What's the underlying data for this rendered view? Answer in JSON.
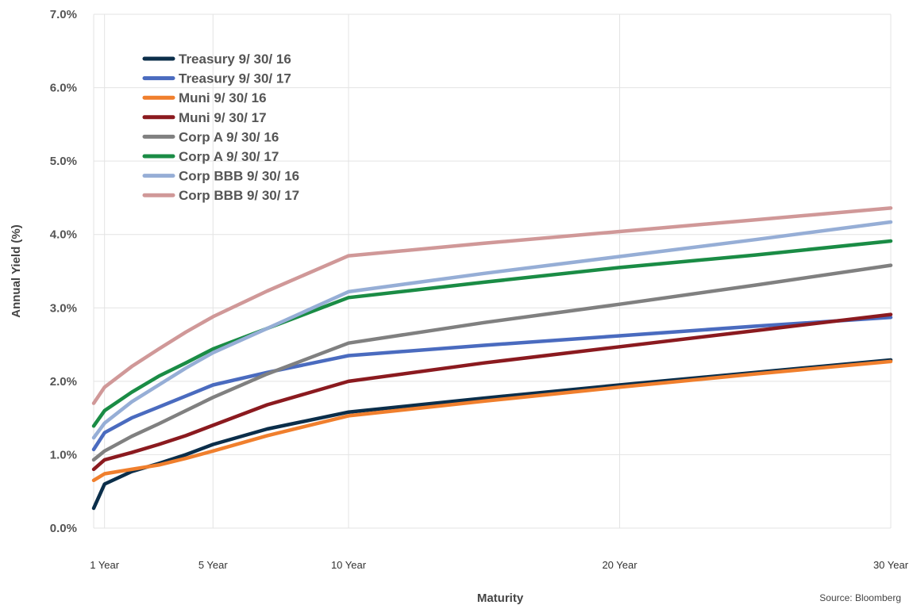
{
  "chart_data": {
    "type": "line",
    "title": "",
    "xlabel": "Maturity",
    "ylabel": "Annual Yield (%)",
    "source": "Source:  Bloomberg",
    "ylim": [
      0,
      7
    ],
    "xlim": [
      0.6,
      30
    ],
    "grid": true,
    "legend_position": "top-left",
    "y_ticks": [
      {
        "value": 0,
        "label": "0.0%"
      },
      {
        "value": 1,
        "label": "1.0%"
      },
      {
        "value": 2,
        "label": "2.0%"
      },
      {
        "value": 3,
        "label": "3.0%"
      },
      {
        "value": 4,
        "label": "4.0%"
      },
      {
        "value": 5,
        "label": "5.0%"
      },
      {
        "value": 6,
        "label": "6.0%"
      },
      {
        "value": 7,
        "label": "7.0%"
      }
    ],
    "x_ticks": [
      {
        "value": 1,
        "label": "1 Year"
      },
      {
        "value": 5,
        "label": "5 Year"
      },
      {
        "value": 10,
        "label": "10 Year"
      },
      {
        "value": 20,
        "label": "20 Year"
      },
      {
        "value": 30,
        "label": "30 Year"
      }
    ],
    "x": [
      0.6,
      1,
      2,
      3,
      4,
      5,
      7,
      10,
      15,
      20,
      25,
      30
    ],
    "series": [
      {
        "name": "Treasury 9/ 30/ 16",
        "color": "#0b2e4a",
        "values": [
          0.27,
          0.6,
          0.77,
          0.88,
          1.0,
          1.14,
          1.35,
          1.58,
          1.77,
          1.95,
          2.12,
          2.29
        ]
      },
      {
        "name": "Treasury 9/ 30/ 17",
        "color": "#4a6bbf",
        "values": [
          1.07,
          1.3,
          1.5,
          1.65,
          1.8,
          1.95,
          2.12,
          2.35,
          2.49,
          2.62,
          2.75,
          2.87
        ]
      },
      {
        "name": "Muni 9/ 30/ 16",
        "color": "#f07f2d",
        "values": [
          0.65,
          0.74,
          0.8,
          0.86,
          0.95,
          1.05,
          1.26,
          1.53,
          1.73,
          1.92,
          2.1,
          2.27
        ]
      },
      {
        "name": "Muni 9/ 30/ 17",
        "color": "#8b1a1f",
        "values": [
          0.8,
          0.93,
          1.03,
          1.14,
          1.26,
          1.4,
          1.68,
          2.0,
          2.25,
          2.47,
          2.69,
          2.91
        ]
      },
      {
        "name": "Corp A 9/ 30/ 16",
        "color": "#808080",
        "values": [
          0.93,
          1.05,
          1.25,
          1.42,
          1.6,
          1.78,
          2.1,
          2.52,
          2.8,
          3.05,
          3.31,
          3.58
        ]
      },
      {
        "name": "Corp A 9/ 30/ 17",
        "color": "#1a8c45",
        "values": [
          1.39,
          1.6,
          1.85,
          2.07,
          2.25,
          2.44,
          2.72,
          3.14,
          3.35,
          3.55,
          3.72,
          3.91
        ]
      },
      {
        "name": "Corp BBB 9/ 30/ 16",
        "color": "#96aed6",
        "values": [
          1.23,
          1.43,
          1.72,
          1.95,
          2.18,
          2.39,
          2.72,
          3.22,
          3.47,
          3.7,
          3.93,
          4.17
        ]
      },
      {
        "name": "Corp BBB 9/ 30/ 17",
        "color": "#d09898",
        "values": [
          1.7,
          1.92,
          2.2,
          2.44,
          2.67,
          2.88,
          3.23,
          3.71,
          3.88,
          4.04,
          4.2,
          4.36
        ]
      }
    ]
  }
}
